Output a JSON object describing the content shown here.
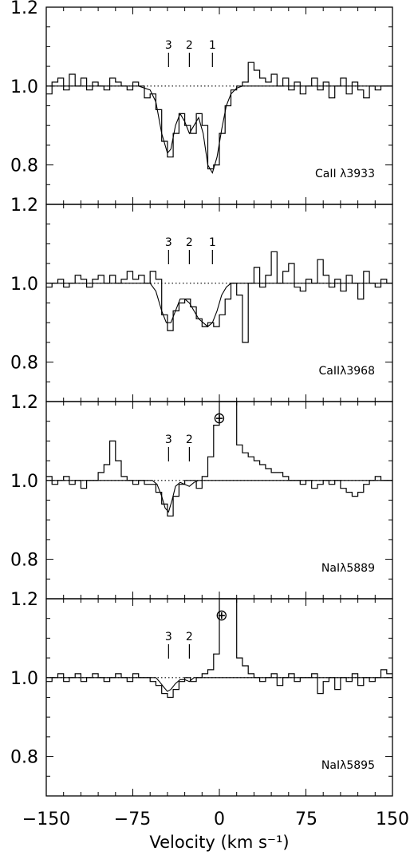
{
  "xlabel": "Velocity (km s⁻¹)",
  "x_tick_labels": [
    "−150",
    "−75",
    "0",
    "75",
    "150"
  ],
  "y_tick_labels": [
    "0.8",
    "1.0",
    "1.2"
  ],
  "chart_data": [
    {
      "type": "line",
      "panel_label": "CaII λ3933",
      "xlim": [
        -150,
        150
      ],
      "ylim": [
        0.7,
        1.2
      ],
      "xlabel": "Velocity (km s⁻¹)",
      "continuum": 1.0,
      "component_markers": [
        {
          "label": "3",
          "x": -44
        },
        {
          "label": "2",
          "x": -26
        },
        {
          "label": "1",
          "x": -6
        }
      ],
      "series": [
        {
          "style": "histogram",
          "x": [
            -150,
            -145,
            -140,
            -135,
            -130,
            -125,
            -120,
            -115,
            -110,
            -105,
            -100,
            -95,
            -90,
            -85,
            -80,
            -75,
            -70,
            -65,
            -60,
            -55,
            -50,
            -45,
            -40,
            -35,
            -30,
            -25,
            -20,
            -15,
            -10,
            -5,
            0,
            5,
            10,
            15,
            20,
            25,
            30,
            35,
            40,
            45,
            50,
            55,
            60,
            65,
            70,
            75,
            80,
            85,
            90,
            95,
            100,
            105,
            110,
            115,
            120,
            125,
            130,
            135,
            140,
            145
          ],
          "y": [
            0.98,
            1.01,
            1.02,
            0.99,
            1.03,
            1.0,
            1.02,
            0.99,
            1.01,
            1.0,
            0.99,
            1.02,
            1.01,
            1.0,
            0.99,
            1.01,
            1.0,
            0.97,
            0.98,
            0.94,
            0.86,
            0.82,
            0.88,
            0.93,
            0.9,
            0.88,
            0.93,
            0.9,
            0.79,
            0.8,
            0.88,
            0.95,
            0.99,
            1.0,
            1.01,
            1.06,
            1.04,
            1.02,
            1.01,
            1.03,
            1.0,
            1.02,
            0.99,
            1.01,
            0.98,
            1.0,
            1.02,
            0.99,
            1.01,
            0.97,
            1.0,
            1.02,
            0.98,
            1.01,
            0.99,
            0.97,
            1.0,
            0.99,
            1.0,
            1.0
          ]
        },
        {
          "style": "model",
          "x": [
            -150,
            -70,
            -60,
            -55,
            -50,
            -45,
            -42,
            -38,
            -34,
            -30,
            -26,
            -22,
            -18,
            -14,
            -10,
            -6,
            -2,
            2,
            6,
            10,
            15,
            20,
            30,
            150
          ],
          "y": [
            1.0,
            1.0,
            0.99,
            0.96,
            0.88,
            0.83,
            0.84,
            0.9,
            0.93,
            0.91,
            0.88,
            0.9,
            0.92,
            0.88,
            0.8,
            0.78,
            0.82,
            0.89,
            0.95,
            0.98,
            0.995,
            1.0,
            1.0,
            1.0
          ]
        }
      ]
    },
    {
      "type": "line",
      "panel_label": "CaIIλ3968",
      "xlim": [
        -150,
        150
      ],
      "ylim": [
        0.7,
        1.2
      ],
      "continuum": 1.0,
      "component_markers": [
        {
          "label": "3",
          "x": -44
        },
        {
          "label": "2",
          "x": -26
        },
        {
          "label": "1",
          "x": -6
        }
      ],
      "series": [
        {
          "style": "histogram",
          "x": [
            -150,
            -145,
            -140,
            -135,
            -130,
            -125,
            -120,
            -115,
            -110,
            -105,
            -100,
            -95,
            -90,
            -85,
            -80,
            -75,
            -70,
            -65,
            -60,
            -55,
            -50,
            -45,
            -40,
            -35,
            -30,
            -25,
            -20,
            -15,
            -10,
            -5,
            0,
            5,
            10,
            15,
            20,
            25,
            30,
            35,
            40,
            45,
            50,
            55,
            60,
            65,
            70,
            75,
            80,
            85,
            90,
            95,
            100,
            105,
            110,
            115,
            120,
            125,
            130,
            135,
            140,
            145
          ],
          "y": [
            0.99,
            1.0,
            1.01,
            0.99,
            1.0,
            1.02,
            1.01,
            0.99,
            1.01,
            1.02,
            1.0,
            1.02,
            1.0,
            1.01,
            1.03,
            1.01,
            1.02,
            1.0,
            1.03,
            1.01,
            0.92,
            0.88,
            0.93,
            0.95,
            0.96,
            0.94,
            0.91,
            0.89,
            0.9,
            0.89,
            0.92,
            0.96,
            1.0,
            0.97,
            0.85,
            1.0,
            1.04,
            0.99,
            1.02,
            1.08,
            1.0,
            1.03,
            1.05,
            0.99,
            0.98,
            1.01,
            1.0,
            1.06,
            1.02,
            0.99,
            1.01,
            0.98,
            1.02,
            1.0,
            0.96,
            1.03,
            1.0,
            0.99,
            1.01,
            1.0
          ]
        },
        {
          "style": "model",
          "x": [
            -150,
            -60,
            -55,
            -50,
            -46,
            -42,
            -38,
            -34,
            -30,
            -26,
            -22,
            -18,
            -14,
            -10,
            -6,
            -2,
            2,
            6,
            10,
            150
          ],
          "y": [
            1.0,
            1.0,
            0.98,
            0.93,
            0.9,
            0.9,
            0.93,
            0.96,
            0.96,
            0.95,
            0.93,
            0.91,
            0.9,
            0.89,
            0.9,
            0.93,
            0.97,
            0.99,
            1.0,
            1.0
          ]
        }
      ]
    },
    {
      "type": "line",
      "panel_label": "NaIλ5889",
      "xlim": [
        -150,
        150
      ],
      "ylim": [
        0.7,
        1.2
      ],
      "continuum": 1.0,
      "component_markers": [
        {
          "label": "3",
          "x": -44
        },
        {
          "label": "2",
          "x": -26
        }
      ],
      "annotations": [
        {
          "text": "⊕",
          "x": 0,
          "y": 1.16
        }
      ],
      "series": [
        {
          "style": "histogram",
          "x": [
            -150,
            -145,
            -140,
            -135,
            -130,
            -125,
            -120,
            -115,
            -110,
            -105,
            -100,
            -95,
            -90,
            -85,
            -80,
            -75,
            -70,
            -65,
            -60,
            -55,
            -50,
            -45,
            -40,
            -35,
            -30,
            -25,
            -20,
            -15,
            -10,
            -5,
            0,
            5,
            10,
            15,
            20,
            25,
            30,
            35,
            40,
            45,
            50,
            55,
            60,
            65,
            70,
            75,
            80,
            85,
            90,
            95,
            100,
            105,
            110,
            115,
            120,
            125,
            130,
            135,
            140,
            145
          ],
          "y": [
            1.01,
            0.99,
            1.0,
            1.01,
            0.99,
            1.0,
            0.98,
            1.0,
            1.0,
            1.02,
            1.04,
            1.1,
            1.05,
            1.01,
            1.0,
            0.99,
            1.0,
            0.99,
            0.99,
            0.97,
            0.94,
            0.91,
            0.96,
            0.99,
            1.0,
            1.0,
            0.98,
            1.01,
            1.06,
            1.14,
            1.2,
            1.2,
            1.2,
            1.09,
            1.07,
            1.06,
            1.05,
            1.04,
            1.03,
            1.02,
            1.02,
            1.01,
            1.0,
            1.0,
            0.99,
            1.0,
            0.98,
            0.99,
            1.0,
            0.99,
            1.0,
            0.98,
            0.97,
            0.96,
            0.97,
            0.99,
            1.0,
            1.01,
            1.0,
            1.0
          ]
        },
        {
          "style": "model",
          "x": [
            -150,
            -58,
            -54,
            -50,
            -47,
            -44,
            -41,
            -38,
            -34,
            -30,
            -26,
            -22,
            -18,
            150
          ],
          "y": [
            1.0,
            1.0,
            0.99,
            0.96,
            0.93,
            0.92,
            0.95,
            0.985,
            0.995,
            0.99,
            0.985,
            0.995,
            1.0,
            1.0
          ]
        }
      ]
    },
    {
      "type": "line",
      "panel_label": "NaIλ5895",
      "xlim": [
        -150,
        150
      ],
      "ylim": [
        0.7,
        1.2
      ],
      "continuum": 1.0,
      "component_markers": [
        {
          "label": "3",
          "x": -44
        },
        {
          "label": "2",
          "x": -26
        }
      ],
      "annotations": [
        {
          "text": "⊕",
          "x": 2,
          "y": 1.16
        }
      ],
      "series": [
        {
          "style": "histogram",
          "x": [
            -150,
            -145,
            -140,
            -135,
            -130,
            -125,
            -120,
            -115,
            -110,
            -105,
            -100,
            -95,
            -90,
            -85,
            -80,
            -75,
            -70,
            -65,
            -60,
            -55,
            -50,
            -45,
            -40,
            -35,
            -30,
            -25,
            -20,
            -15,
            -10,
            -5,
            0,
            5,
            10,
            15,
            20,
            25,
            30,
            35,
            40,
            45,
            50,
            55,
            60,
            65,
            70,
            75,
            80,
            85,
            90,
            95,
            100,
            105,
            110,
            115,
            120,
            125,
            130,
            135,
            140,
            145
          ],
          "y": [
            0.99,
            1.0,
            1.01,
            0.99,
            1.0,
            1.01,
            0.99,
            1.0,
            1.01,
            1.0,
            0.99,
            1.0,
            1.01,
            1.0,
            0.99,
            1.01,
            1.0,
            1.0,
            0.99,
            0.98,
            0.96,
            0.95,
            0.97,
            0.99,
            1.0,
            0.99,
            1.0,
            1.01,
            1.02,
            1.06,
            1.2,
            1.2,
            1.2,
            1.05,
            1.03,
            1.01,
            1.0,
            0.99,
            1.0,
            1.01,
            0.98,
            1.0,
            1.01,
            0.99,
            1.0,
            1.0,
            1.01,
            0.96,
            0.99,
            1.0,
            0.97,
            1.0,
            0.99,
            1.01,
            0.98,
            1.0,
            0.99,
            1.0,
            1.02,
            1.01
          ]
        },
        {
          "style": "model",
          "x": [
            -150,
            -55,
            -52,
            -48,
            -45,
            -42,
            -38,
            -34,
            -30,
            -26,
            -22,
            150
          ],
          "y": [
            1.0,
            1.0,
            0.99,
            0.975,
            0.965,
            0.97,
            0.985,
            0.995,
            0.995,
            0.99,
            1.0,
            1.0
          ]
        }
      ]
    }
  ]
}
